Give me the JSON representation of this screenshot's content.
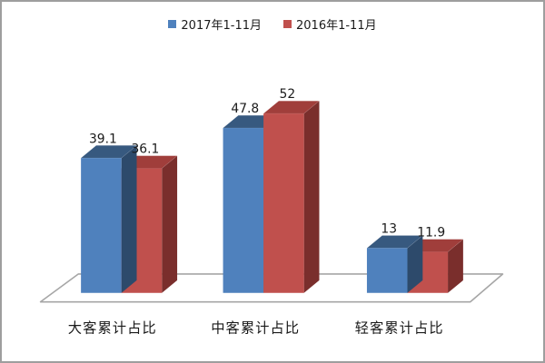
{
  "window": {
    "background": "#ffffff",
    "border_color": "#9e9e9e"
  },
  "legend": {
    "items": [
      {
        "label": "2017年1-11月",
        "color": "#4f81bd"
      },
      {
        "label": "2016年1-11月",
        "color": "#c0504d"
      }
    ]
  },
  "chart_data": {
    "type": "bar",
    "style": "3d-clustered-column",
    "title": "",
    "categories": [
      "大客累计占比",
      "中客累计占比",
      "轻客累计占比"
    ],
    "series": [
      {
        "name": "2017年1-11月",
        "values": [
          39.1,
          47.8,
          13
        ],
        "labels": [
          "39.1",
          "47.8",
          "13"
        ],
        "color": "#4f81bd",
        "color_top": "#37597f",
        "color_side": "#2d4a6b"
      },
      {
        "name": "2016年1-11月",
        "values": [
          36.1,
          52,
          11.9
        ],
        "labels": [
          "36.1",
          "52",
          "11.9"
        ],
        "color": "#c0504d",
        "color_top": "#a03e3b",
        "color_side": "#7a2e2c"
      }
    ],
    "value_labels_visible": true,
    "axes_visible": false,
    "gridlines_visible": false,
    "legend_position": "top",
    "floor_color": "#a6a6a6",
    "text_color": "#1a1a1a",
    "ylim": [
      0,
      60
    ]
  }
}
